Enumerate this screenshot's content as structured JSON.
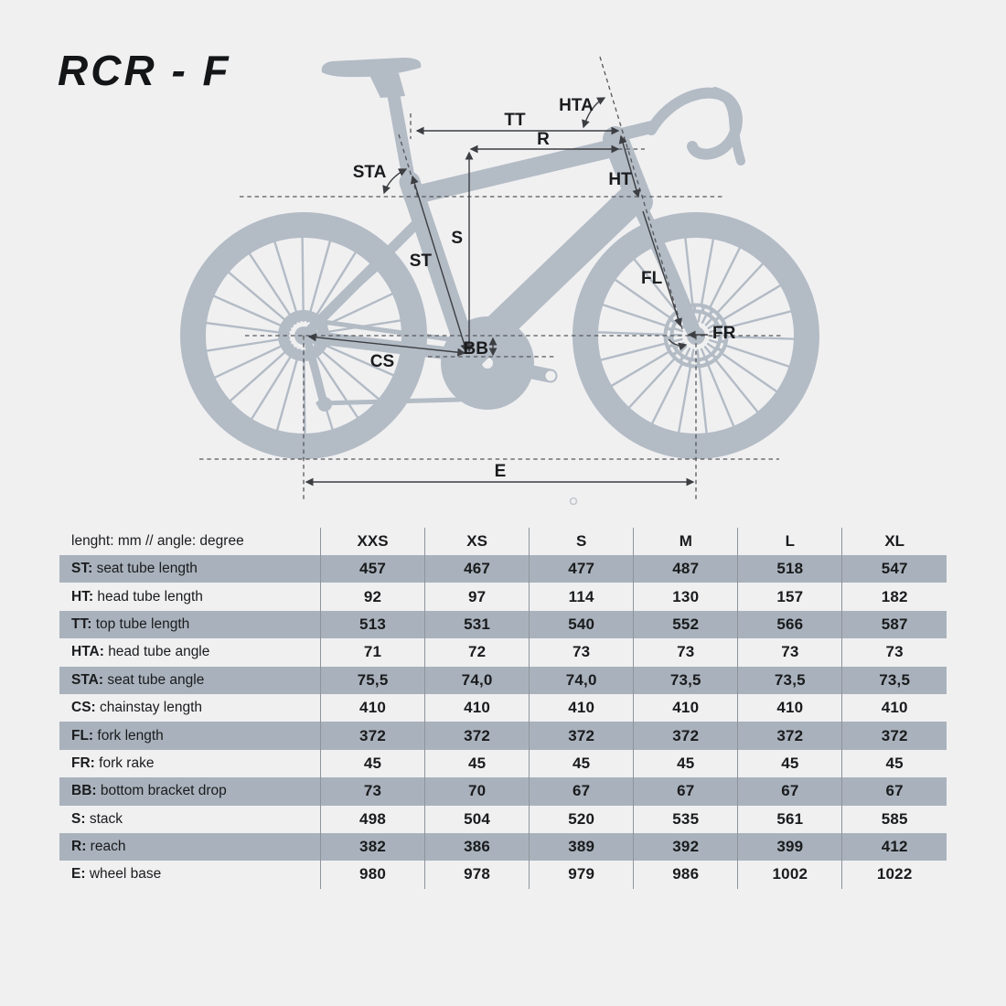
{
  "title": "RCR - F",
  "colors": {
    "background": "#f0f0f1",
    "silhouette": "#b3bbc5",
    "table_stripe": "#a9b2bc",
    "ink": "#1a1b1d",
    "measure_line": "#3c3e42",
    "dashed_line": "#55575b",
    "column_divider": "#8e939b"
  },
  "diagram": {
    "labels": {
      "tt": "TT",
      "r": "R",
      "hta": "HTA",
      "sta": "STA",
      "ht": "HT",
      "s": "S",
      "st": "ST",
      "fl": "FL",
      "fr": "FR",
      "bb": "BB",
      "cs": "CS",
      "e": "E"
    }
  },
  "table": {
    "header_label": "lenght: mm // angle: degree",
    "sizes": [
      "XXS",
      "XS",
      "S",
      "M",
      "L",
      "XL"
    ],
    "rows": [
      {
        "abbr": "ST:",
        "desc": "seat tube length",
        "values": [
          "457",
          "467",
          "477",
          "487",
          "518",
          "547"
        ]
      },
      {
        "abbr": "HT:",
        "desc": "head tube length",
        "values": [
          "92",
          "97",
          "114",
          "130",
          "157",
          "182"
        ]
      },
      {
        "abbr": "TT:",
        "desc": "top tube length",
        "values": [
          "513",
          "531",
          "540",
          "552",
          "566",
          "587"
        ]
      },
      {
        "abbr": "HTA:",
        "desc": "head tube angle",
        "values": [
          "71",
          "72",
          "73",
          "73",
          "73",
          "73"
        ]
      },
      {
        "abbr": "STA:",
        "desc": "seat tube angle",
        "values": [
          "75,5",
          "74,0",
          "74,0",
          "73,5",
          "73,5",
          "73,5"
        ]
      },
      {
        "abbr": "CS:",
        "desc": "chainstay length",
        "values": [
          "410",
          "410",
          "410",
          "410",
          "410",
          "410"
        ]
      },
      {
        "abbr": "FL:",
        "desc": "fork length",
        "values": [
          "372",
          "372",
          "372",
          "372",
          "372",
          "372"
        ]
      },
      {
        "abbr": "FR:",
        "desc": "fork rake",
        "values": [
          "45",
          "45",
          "45",
          "45",
          "45",
          "45"
        ]
      },
      {
        "abbr": "BB:",
        "desc": "bottom bracket drop",
        "values": [
          "73",
          "70",
          "67",
          "67",
          "67",
          "67"
        ]
      },
      {
        "abbr": "S:",
        "desc": "stack",
        "values": [
          "498",
          "504",
          "520",
          "535",
          "561",
          "585"
        ]
      },
      {
        "abbr": "R:",
        "desc": "reach",
        "values": [
          "382",
          "386",
          "389",
          "392",
          "399",
          "412"
        ]
      },
      {
        "abbr": "E:",
        "desc": "wheel base",
        "values": [
          "980",
          "978",
          "979",
          "986",
          "1002",
          "1022"
        ]
      }
    ]
  },
  "chart_data": {
    "type": "table",
    "title": "RCR - F road bike geometry",
    "columns": [
      "lenght: mm // angle: degree",
      "XXS",
      "XS",
      "S",
      "M",
      "L",
      "XL"
    ],
    "rows": [
      [
        "ST: seat tube length",
        "457",
        "467",
        "477",
        "487",
        "518",
        "547"
      ],
      [
        "HT: head tube length",
        "92",
        "97",
        "114",
        "130",
        "157",
        "182"
      ],
      [
        "TT: top tube length",
        "513",
        "531",
        "540",
        "552",
        "566",
        "587"
      ],
      [
        "HTA: head tube angle",
        "71",
        "72",
        "73",
        "73",
        "73",
        "73"
      ],
      [
        "STA: seat tube angle",
        "75,5",
        "74,0",
        "74,0",
        "73,5",
        "73,5",
        "73,5"
      ],
      [
        "CS: chainstay length",
        "410",
        "410",
        "410",
        "410",
        "410",
        "410"
      ],
      [
        "FL: fork length",
        "372",
        "372",
        "372",
        "372",
        "372",
        "372"
      ],
      [
        "FR: fork rake",
        "45",
        "45",
        "45",
        "45",
        "45",
        "45"
      ],
      [
        "BB: bottom bracket drop",
        "73",
        "70",
        "67",
        "67",
        "67",
        "67"
      ],
      [
        "S: stack",
        "498",
        "504",
        "520",
        "535",
        "561",
        "585"
      ],
      [
        "R: reach",
        "382",
        "386",
        "389",
        "392",
        "399",
        "412"
      ],
      [
        "E: wheel base",
        "980",
        "978",
        "979",
        "986",
        "1002",
        "1022"
      ]
    ]
  }
}
